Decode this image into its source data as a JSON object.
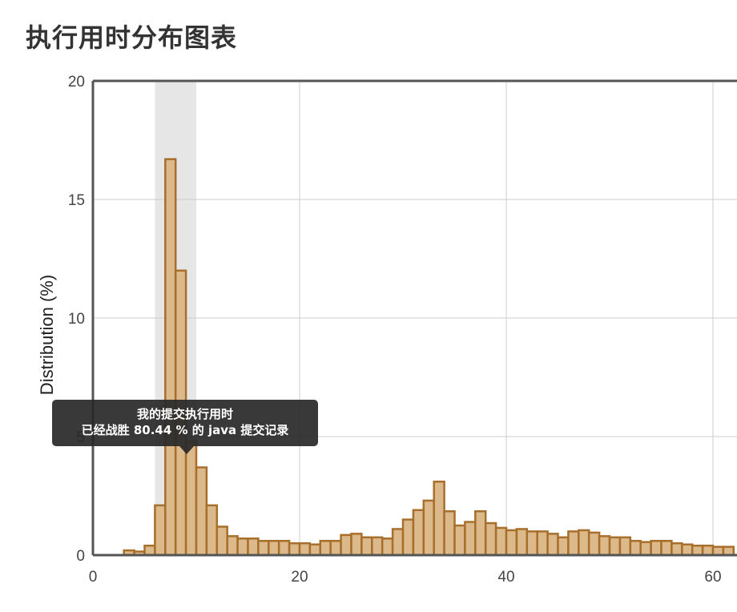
{
  "page": {
    "title": "执行用时分布图表"
  },
  "tooltip": {
    "line1": "我的提交执行用时",
    "line2": "已经战胜 80.44 % 的 java 提交记录"
  },
  "colors": {
    "bar_fill": "#dbb98b",
    "bar_stroke": "#a86f2c",
    "highlight": "#e6e6e6",
    "grid": "#cccccc",
    "axis": "#555555"
  },
  "chart_data": {
    "type": "bar",
    "title": "",
    "ylabel": "Distribution (%)",
    "xlabel": "",
    "xlim": [
      0,
      62
    ],
    "ylim": [
      0,
      20
    ],
    "xticks": [
      0,
      20,
      40,
      60
    ],
    "yticks": [
      0,
      5,
      10,
      15,
      20
    ],
    "grid": true,
    "bin_width": 1,
    "highlight_range": [
      6,
      10
    ],
    "bins_start": [
      3,
      4,
      5,
      6,
      7,
      8,
      9,
      10,
      11,
      12,
      13,
      14,
      15,
      16,
      17,
      18,
      19,
      20,
      21,
      22,
      23,
      24,
      25,
      26,
      27,
      28,
      29,
      30,
      31,
      32,
      33,
      34,
      35,
      36,
      37,
      38,
      39,
      40,
      41,
      42,
      43,
      44,
      45,
      46,
      47,
      48,
      49,
      50,
      51,
      52,
      53,
      54,
      55,
      56,
      57,
      58,
      59,
      60,
      61
    ],
    "values": [
      0.2,
      0.15,
      0.4,
      2.1,
      16.7,
      12.0,
      4.8,
      3.7,
      2.1,
      1.2,
      0.8,
      0.7,
      0.7,
      0.6,
      0.6,
      0.6,
      0.5,
      0.5,
      0.45,
      0.6,
      0.6,
      0.85,
      0.9,
      0.75,
      0.75,
      0.7,
      1.1,
      1.5,
      1.9,
      2.3,
      3.1,
      1.85,
      1.25,
      1.4,
      1.85,
      1.35,
      1.15,
      1.05,
      1.1,
      1.0,
      1.0,
      0.9,
      0.75,
      1.0,
      1.05,
      0.95,
      0.8,
      0.75,
      0.75,
      0.6,
      0.55,
      0.6,
      0.6,
      0.5,
      0.45,
      0.4,
      0.4,
      0.35,
      0.35
    ]
  }
}
